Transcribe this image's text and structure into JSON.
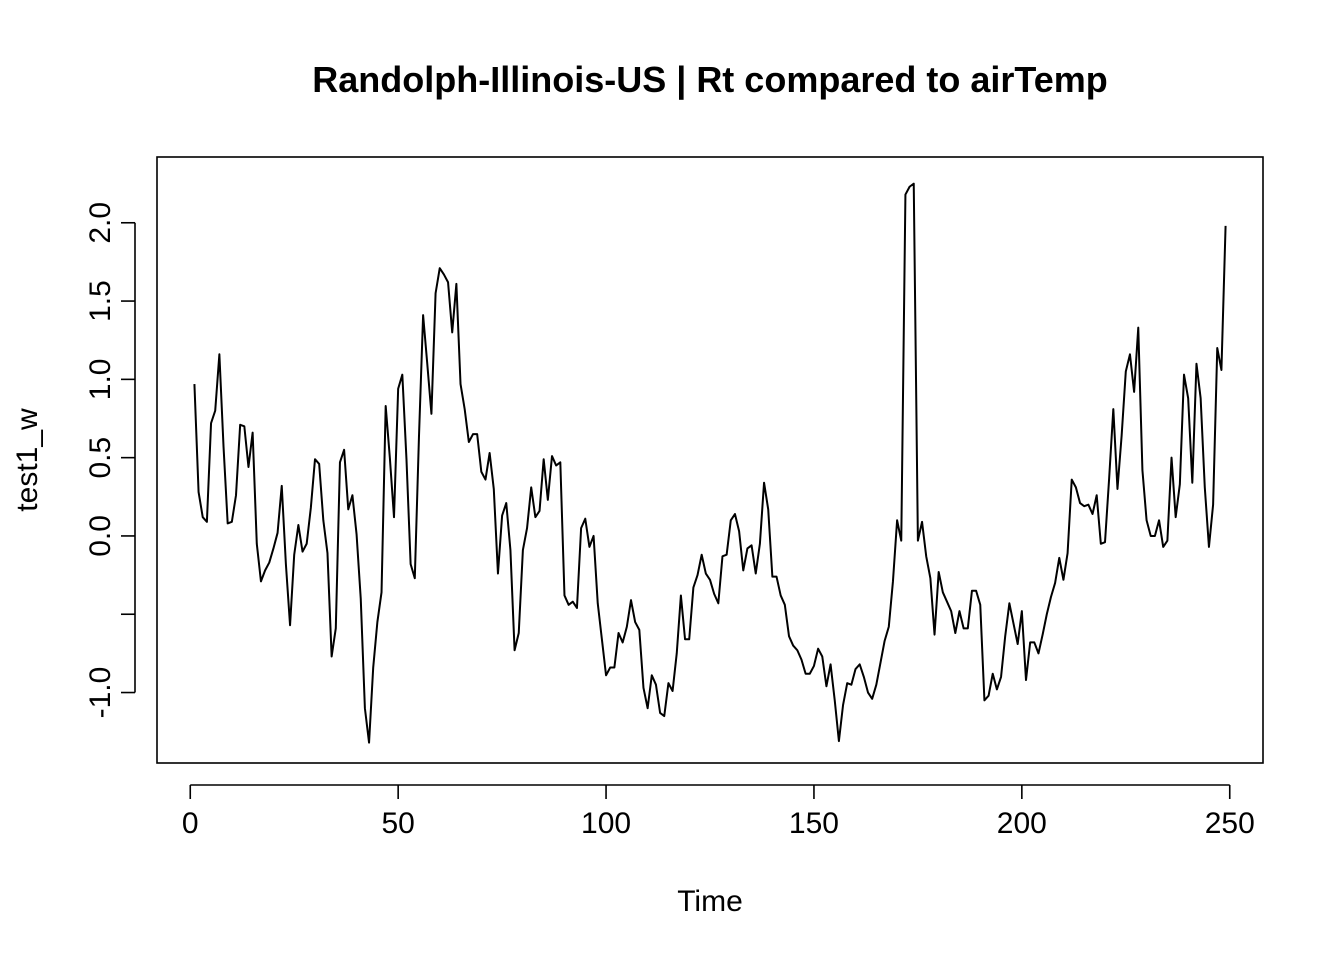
{
  "chart_data": {
    "type": "line",
    "title": "Randolph-Illinois-US | Rt compared to airTemp",
    "xlabel": "Time",
    "ylabel": "test1_w",
    "xlim": [
      -8,
      258
    ],
    "ylim": [
      -1.45,
      2.42
    ],
    "x_ticks": [
      0,
      50,
      100,
      150,
      200,
      250
    ],
    "x_tick_labels": [
      "0",
      "50",
      "100",
      "150",
      "200",
      "250"
    ],
    "y_ticks": [
      -1.0,
      -0.5,
      0.0,
      0.5,
      1.0,
      1.5,
      2.0
    ],
    "y_tick_labels": [
      "-1.0",
      "",
      "0.0",
      "0.5",
      "1.0",
      "1.5",
      "2.0"
    ],
    "grid": false,
    "legend": "none",
    "line_color": "#000000",
    "series": [
      {
        "x_start": 1,
        "x_step": 1,
        "values": [
          0.97,
          0.28,
          0.12,
          0.09,
          0.72,
          0.8,
          1.16,
          0.57,
          0.08,
          0.09,
          0.26,
          0.71,
          0.7,
          0.44,
          0.66,
          -0.05,
          -0.29,
          -0.22,
          -0.17,
          -0.08,
          0.02,
          0.32,
          -0.18,
          -0.57,
          -0.12,
          0.07,
          -0.1,
          -0.05,
          0.18,
          0.49,
          0.46,
          0.1,
          -0.11,
          -0.77,
          -0.59,
          0.47,
          0.55,
          0.17,
          0.26,
          0.01,
          -0.4,
          -1.1,
          -1.32,
          -0.84,
          -0.55,
          -0.36,
          0.83,
          0.5,
          0.12,
          0.94,
          1.03,
          0.49,
          -0.18,
          -0.27,
          0.63,
          1.41,
          1.1,
          0.78,
          1.55,
          1.71,
          1.67,
          1.62,
          1.3,
          1.61,
          0.97,
          0.81,
          0.6,
          0.65,
          0.65,
          0.41,
          0.36,
          0.53,
          0.3,
          -0.24,
          0.13,
          0.21,
          -0.09,
          -0.73,
          -0.62,
          -0.09,
          0.05,
          0.31,
          0.12,
          0.16,
          0.49,
          0.23,
          0.51,
          0.45,
          0.47,
          -0.38,
          -0.44,
          -0.42,
          -0.46,
          0.05,
          0.11,
          -0.07,
          0.0,
          -0.43,
          -0.66,
          -0.89,
          -0.84,
          -0.84,
          -0.62,
          -0.68,
          -0.58,
          -0.41,
          -0.55,
          -0.6,
          -0.97,
          -1.1,
          -0.89,
          -0.95,
          -1.13,
          -1.15,
          -0.94,
          -0.99,
          -0.75,
          -0.38,
          -0.66,
          -0.66,
          -0.33,
          -0.25,
          -0.12,
          -0.24,
          -0.28,
          -0.37,
          -0.43,
          -0.13,
          -0.12,
          0.1,
          0.14,
          0.03,
          -0.22,
          -0.08,
          -0.06,
          -0.24,
          -0.05,
          0.34,
          0.17,
          -0.26,
          -0.26,
          -0.38,
          -0.44,
          -0.64,
          -0.7,
          -0.73,
          -0.79,
          -0.88,
          -0.88,
          -0.83,
          -0.72,
          -0.77,
          -0.96,
          -0.82,
          -1.05,
          -1.31,
          -1.08,
          -0.94,
          -0.95,
          -0.85,
          -0.82,
          -0.9,
          -1.0,
          -1.04,
          -0.95,
          -0.81,
          -0.67,
          -0.58,
          -0.29,
          0.1,
          -0.03,
          2.18,
          2.23,
          2.25,
          -0.03,
          0.09,
          -0.13,
          -0.27,
          -0.63,
          -0.23,
          -0.36,
          -0.42,
          -0.48,
          -0.62,
          -0.48,
          -0.59,
          -0.59,
          -0.35,
          -0.35,
          -0.44,
          -1.05,
          -1.02,
          -0.88,
          -0.98,
          -0.9,
          -0.64,
          -0.43,
          -0.56,
          -0.69,
          -0.48,
          -0.92,
          -0.68,
          -0.68,
          -0.75,
          -0.63,
          -0.5,
          -0.39,
          -0.3,
          -0.14,
          -0.28,
          -0.11,
          0.36,
          0.31,
          0.21,
          0.19,
          0.2,
          0.14,
          0.26,
          -0.05,
          -0.04,
          0.37,
          0.81,
          0.3,
          0.64,
          1.05,
          1.16,
          0.92,
          1.33,
          0.42,
          0.1,
          0.0,
          0.0,
          0.1,
          -0.07,
          -0.03,
          0.5,
          0.12,
          0.33,
          1.03,
          0.88,
          0.34,
          1.1,
          0.88,
          0.31,
          -0.07,
          0.2,
          1.2,
          1.06,
          1.98
        ]
      }
    ]
  }
}
